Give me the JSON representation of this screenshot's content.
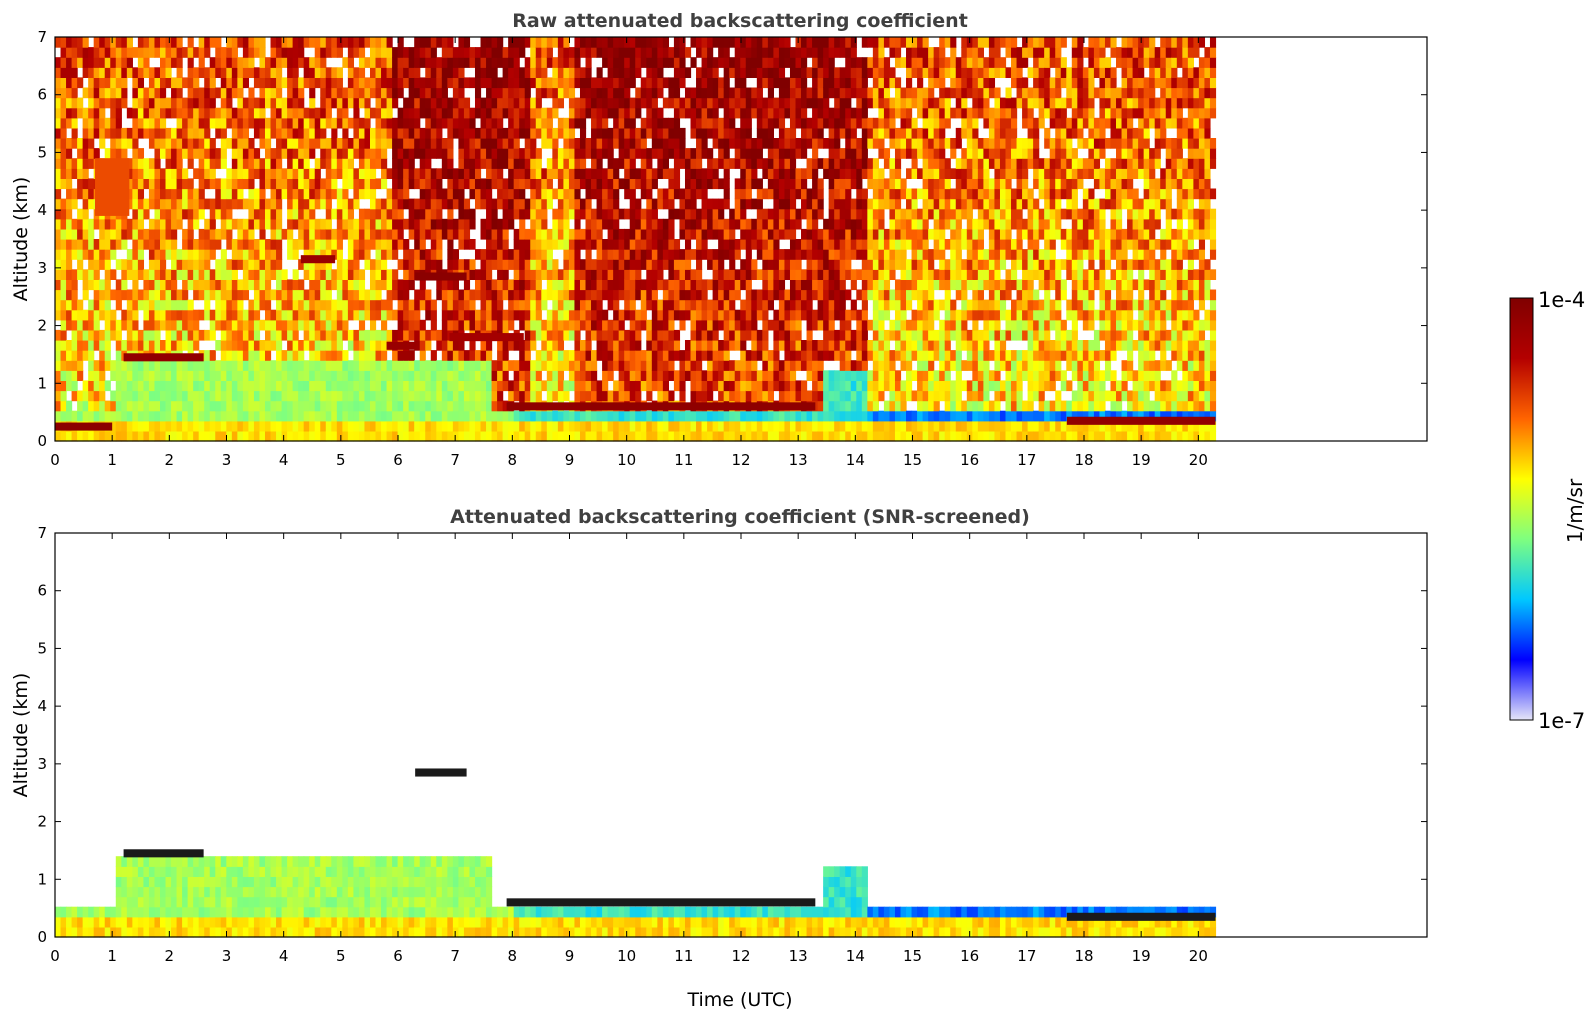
{
  "chart_data": [
    {
      "type": "heatmap",
      "title": "Raw attenuated backscattering coefficient",
      "xlabel": "",
      "ylabel": "Altitude (km)",
      "xlim": [
        0,
        24
      ],
      "ylim": [
        0,
        7
      ],
      "x_ticks": [
        0,
        1,
        2,
        3,
        4,
        5,
        6,
        7,
        8,
        9,
        10,
        11,
        12,
        13,
        14,
        15,
        16,
        17,
        18,
        19,
        20
      ],
      "y_ticks": [
        0,
        1,
        2,
        3,
        4,
        5,
        6,
        7
      ],
      "data_end_time": 20.3,
      "scale": "log",
      "features": [
        {
          "kind": "boundary_layer",
          "t_start": 1.0,
          "t_end": 7.6,
          "top_km": 1.35,
          "level": 0.45
        },
        {
          "kind": "cloud",
          "t_start": 0.0,
          "t_end": 1.0,
          "alt_km": 0.25,
          "level": 0.97
        },
        {
          "kind": "cloud",
          "t_start": 1.2,
          "t_end": 2.6,
          "alt_km": 1.45,
          "level": 0.95
        },
        {
          "kind": "cloud",
          "t_start": 4.3,
          "t_end": 4.9,
          "alt_km": 3.15,
          "level": 0.93
        },
        {
          "kind": "cloud",
          "t_start": 6.3,
          "t_end": 7.2,
          "alt_km": 2.85,
          "level": 0.97
        },
        {
          "kind": "cloud",
          "t_start": 5.8,
          "t_end": 6.3,
          "alt_km": 1.65,
          "level": 0.93
        },
        {
          "kind": "cloud",
          "t_start": 6.9,
          "t_end": 8.2,
          "alt_km": 1.8,
          "level": 0.9
        },
        {
          "kind": "cloud",
          "t_start": 7.9,
          "t_end": 13.3,
          "alt_km": 0.6,
          "level": 0.96
        },
        {
          "kind": "cloud",
          "t_start": 17.7,
          "t_end": 20.3,
          "alt_km": 0.35,
          "level": 0.95
        },
        {
          "kind": "cirrus",
          "t_start": 0.7,
          "t_end": 1.3,
          "alt_km": 4.4,
          "level": 0.75
        }
      ]
    },
    {
      "type": "heatmap",
      "title": "Attenuated backscattering coefficient (SNR-screened)",
      "xlabel": "Time (UTC)",
      "ylabel": "Altitude (km)",
      "xlim": [
        0,
        24
      ],
      "ylim": [
        0,
        7
      ],
      "x_ticks": [
        0,
        1,
        2,
        3,
        4,
        5,
        6,
        7,
        8,
        9,
        10,
        11,
        12,
        13,
        14,
        15,
        16,
        17,
        18,
        19,
        20
      ],
      "y_ticks": [
        0,
        1,
        2,
        3,
        4,
        5,
        6,
        7
      ],
      "data_end_time": 20.3,
      "scale": "log",
      "features": [
        {
          "kind": "boundary_layer",
          "t_start": 1.0,
          "t_end": 7.6,
          "top_km": 1.35,
          "level": 0.45
        },
        {
          "kind": "cloud",
          "t_start": 1.2,
          "t_end": 2.6,
          "alt_km": 1.45,
          "level": 0.95
        },
        {
          "kind": "cloud",
          "t_start": 6.3,
          "t_end": 7.2,
          "alt_km": 2.85,
          "level": 0.97
        },
        {
          "kind": "cloud",
          "t_start": 7.9,
          "t_end": 13.3,
          "alt_km": 0.6,
          "level": 0.96
        },
        {
          "kind": "cloud",
          "t_start": 17.7,
          "t_end": 20.3,
          "alt_km": 0.35,
          "level": 0.95
        }
      ]
    }
  ],
  "colorbar": {
    "label": "1/m/sr",
    "max_label": "1e-4",
    "min_label": "1e-7",
    "colormap": [
      "#e6e6f8",
      "#0000ff",
      "#00c8ff",
      "#7fff7f",
      "#ffff00",
      "#ff6400",
      "#b40000",
      "#800000"
    ]
  },
  "colors": {
    "background": "#ffffff",
    "axis": "#000000",
    "title": "#404040"
  }
}
